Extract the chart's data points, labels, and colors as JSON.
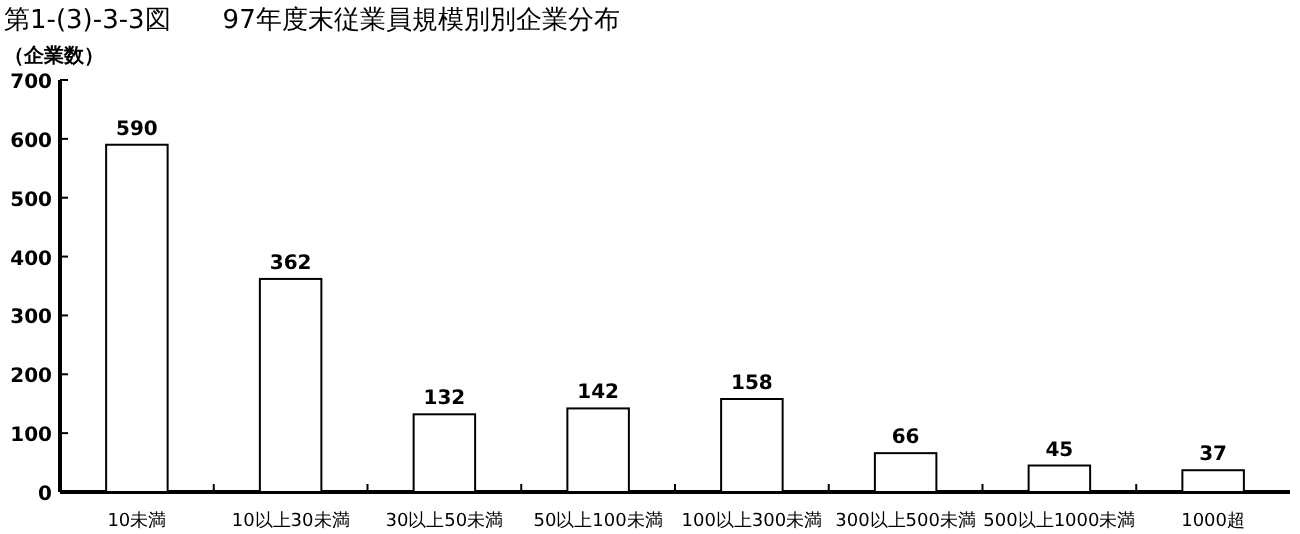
{
  "chart_data": {
    "type": "bar",
    "title": "第1-(3)-3-3図　　97年度末従業員規模別別企業分布",
    "ylabel": "（企業数）",
    "categories": [
      "10未満",
      "10以上30未満",
      "30以上50未満",
      "50以上100未満",
      "100以上300未満",
      "300以上500未満",
      "500以上1000未満",
      "1000超"
    ],
    "values": [
      590,
      362,
      132,
      142,
      158,
      66,
      45,
      37
    ],
    "color": "#ffffff",
    "ylim": [
      0,
      700
    ],
    "yticks": [
      0,
      100,
      200,
      300,
      400,
      500,
      600,
      700
    ],
    "data_labels": true
  }
}
